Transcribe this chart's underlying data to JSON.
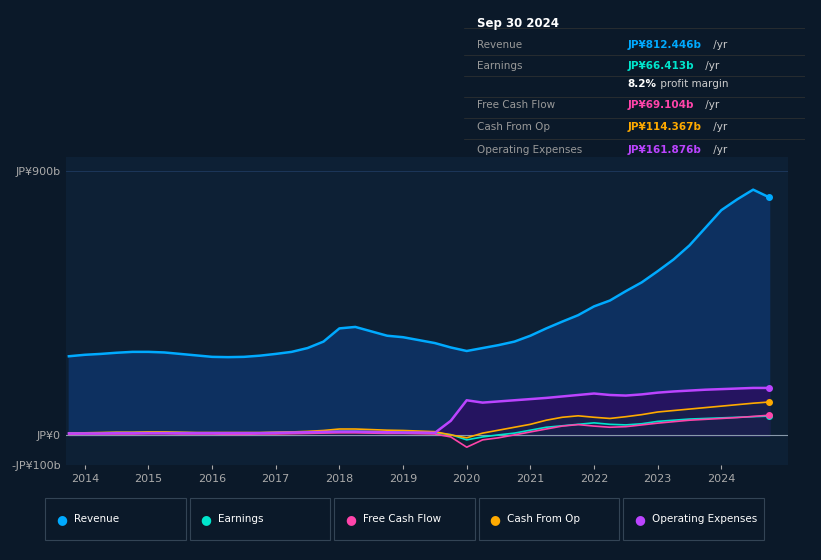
{
  "background_color": "#0b1929",
  "plot_bg_color": "#0d2035",
  "grid_color": "#1e3a5f",
  "zero_line_color": "#8899aa",
  "title_box_bg": "#000000",
  "title_box": {
    "date": "Sep 30 2024",
    "rows": [
      {
        "label": "Revenue",
        "value": "JP¥812.446b",
        "unit": " /yr",
        "color": "#00aaff"
      },
      {
        "label": "Earnings",
        "value": "JP¥66.413b",
        "unit": " /yr",
        "color": "#00e5cc"
      },
      {
        "label": "",
        "value": "8.2%",
        "unit": " profit margin",
        "color": "#ffffff"
      },
      {
        "label": "Free Cash Flow",
        "value": "JP¥69.104b",
        "unit": " /yr",
        "color": "#ff44aa"
      },
      {
        "label": "Cash From Op",
        "value": "JP¥114.367b",
        "unit": " /yr",
        "color": "#ffaa00"
      },
      {
        "label": "Operating Expenses",
        "value": "JP¥161.876b",
        "unit": " /yr",
        "color": "#bb44ff"
      }
    ]
  },
  "series": {
    "years": [
      2013.75,
      2014.0,
      2014.25,
      2014.5,
      2014.75,
      2015.0,
      2015.25,
      2015.5,
      2015.75,
      2016.0,
      2016.25,
      2016.5,
      2016.75,
      2017.0,
      2017.25,
      2017.5,
      2017.75,
      2018.0,
      2018.25,
      2018.5,
      2018.75,
      2019.0,
      2019.25,
      2019.5,
      2019.75,
      2020.0,
      2020.25,
      2020.5,
      2020.75,
      2021.0,
      2021.25,
      2021.5,
      2021.75,
      2022.0,
      2022.25,
      2022.5,
      2022.75,
      2023.0,
      2023.25,
      2023.5,
      2023.75,
      2024.0,
      2024.25,
      2024.5,
      2024.75
    ],
    "revenue": [
      270,
      275,
      278,
      282,
      285,
      285,
      283,
      278,
      273,
      268,
      267,
      268,
      272,
      278,
      285,
      298,
      320,
      365,
      370,
      355,
      340,
      335,
      325,
      315,
      300,
      288,
      298,
      308,
      320,
      340,
      365,
      388,
      410,
      440,
      460,
      492,
      522,
      560,
      600,
      648,
      708,
      768,
      805,
      838,
      812
    ],
    "earnings": [
      8,
      9,
      9,
      10,
      10,
      11,
      11,
      10,
      9,
      9,
      8,
      8,
      9,
      10,
      11,
      12,
      13,
      14,
      14,
      13,
      12,
      11,
      10,
      9,
      3,
      -15,
      -5,
      2,
      8,
      18,
      28,
      33,
      38,
      43,
      38,
      36,
      40,
      48,
      52,
      56,
      58,
      60,
      62,
      64,
      66
    ],
    "free_cash_flow": [
      4,
      5,
      5,
      5,
      5,
      6,
      6,
      5,
      5,
      5,
      4,
      4,
      5,
      5,
      6,
      7,
      8,
      9,
      9,
      8,
      7,
      7,
      6,
      5,
      -5,
      -40,
      -15,
      -8,
      2,
      12,
      22,
      32,
      37,
      32,
      28,
      30,
      36,
      42,
      47,
      52,
      55,
      58,
      61,
      65,
      69
    ],
    "cash_from_op": [
      8,
      9,
      10,
      11,
      11,
      12,
      12,
      11,
      10,
      10,
      10,
      10,
      10,
      11,
      12,
      14,
      17,
      22,
      22,
      20,
      18,
      17,
      15,
      13,
      2,
      -8,
      8,
      18,
      28,
      38,
      52,
      62,
      67,
      62,
      58,
      64,
      71,
      80,
      85,
      90,
      95,
      100,
      105,
      110,
      114
    ],
    "operating_expenses": [
      7,
      7,
      7,
      8,
      8,
      8,
      8,
      8,
      8,
      8,
      8,
      8,
      8,
      9,
      10,
      11,
      12,
      13,
      13,
      12,
      11,
      10,
      10,
      9,
      50,
      120,
      112,
      116,
      120,
      124,
      128,
      133,
      138,
      143,
      138,
      136,
      140,
      146,
      150,
      153,
      156,
      158,
      160,
      162,
      162
    ]
  },
  "ylim": [
    -100,
    950
  ],
  "ytick_positions": [
    -100,
    0,
    900
  ],
  "ytick_labels": [
    "-JP¥100b",
    "JP¥0",
    "JP¥900b"
  ],
  "xticks": [
    2014,
    2015,
    2016,
    2017,
    2018,
    2019,
    2020,
    2021,
    2022,
    2023,
    2024
  ],
  "line_colors": {
    "revenue": "#00aaff",
    "earnings": "#00e5cc",
    "free_cash_flow": "#ff44aa",
    "cash_from_op": "#ffaa00",
    "operating_expenses": "#bb44ff"
  },
  "fill_revenue_color": "#0d3060",
  "fill_opex_color": "#2a1060",
  "legend": [
    {
      "label": "Revenue",
      "color": "#00aaff"
    },
    {
      "label": "Earnings",
      "color": "#00e5cc"
    },
    {
      "label": "Free Cash Flow",
      "color": "#ff44aa"
    },
    {
      "label": "Cash From Op",
      "color": "#ffaa00"
    },
    {
      "label": "Operating Expenses",
      "color": "#bb44ff"
    }
  ]
}
